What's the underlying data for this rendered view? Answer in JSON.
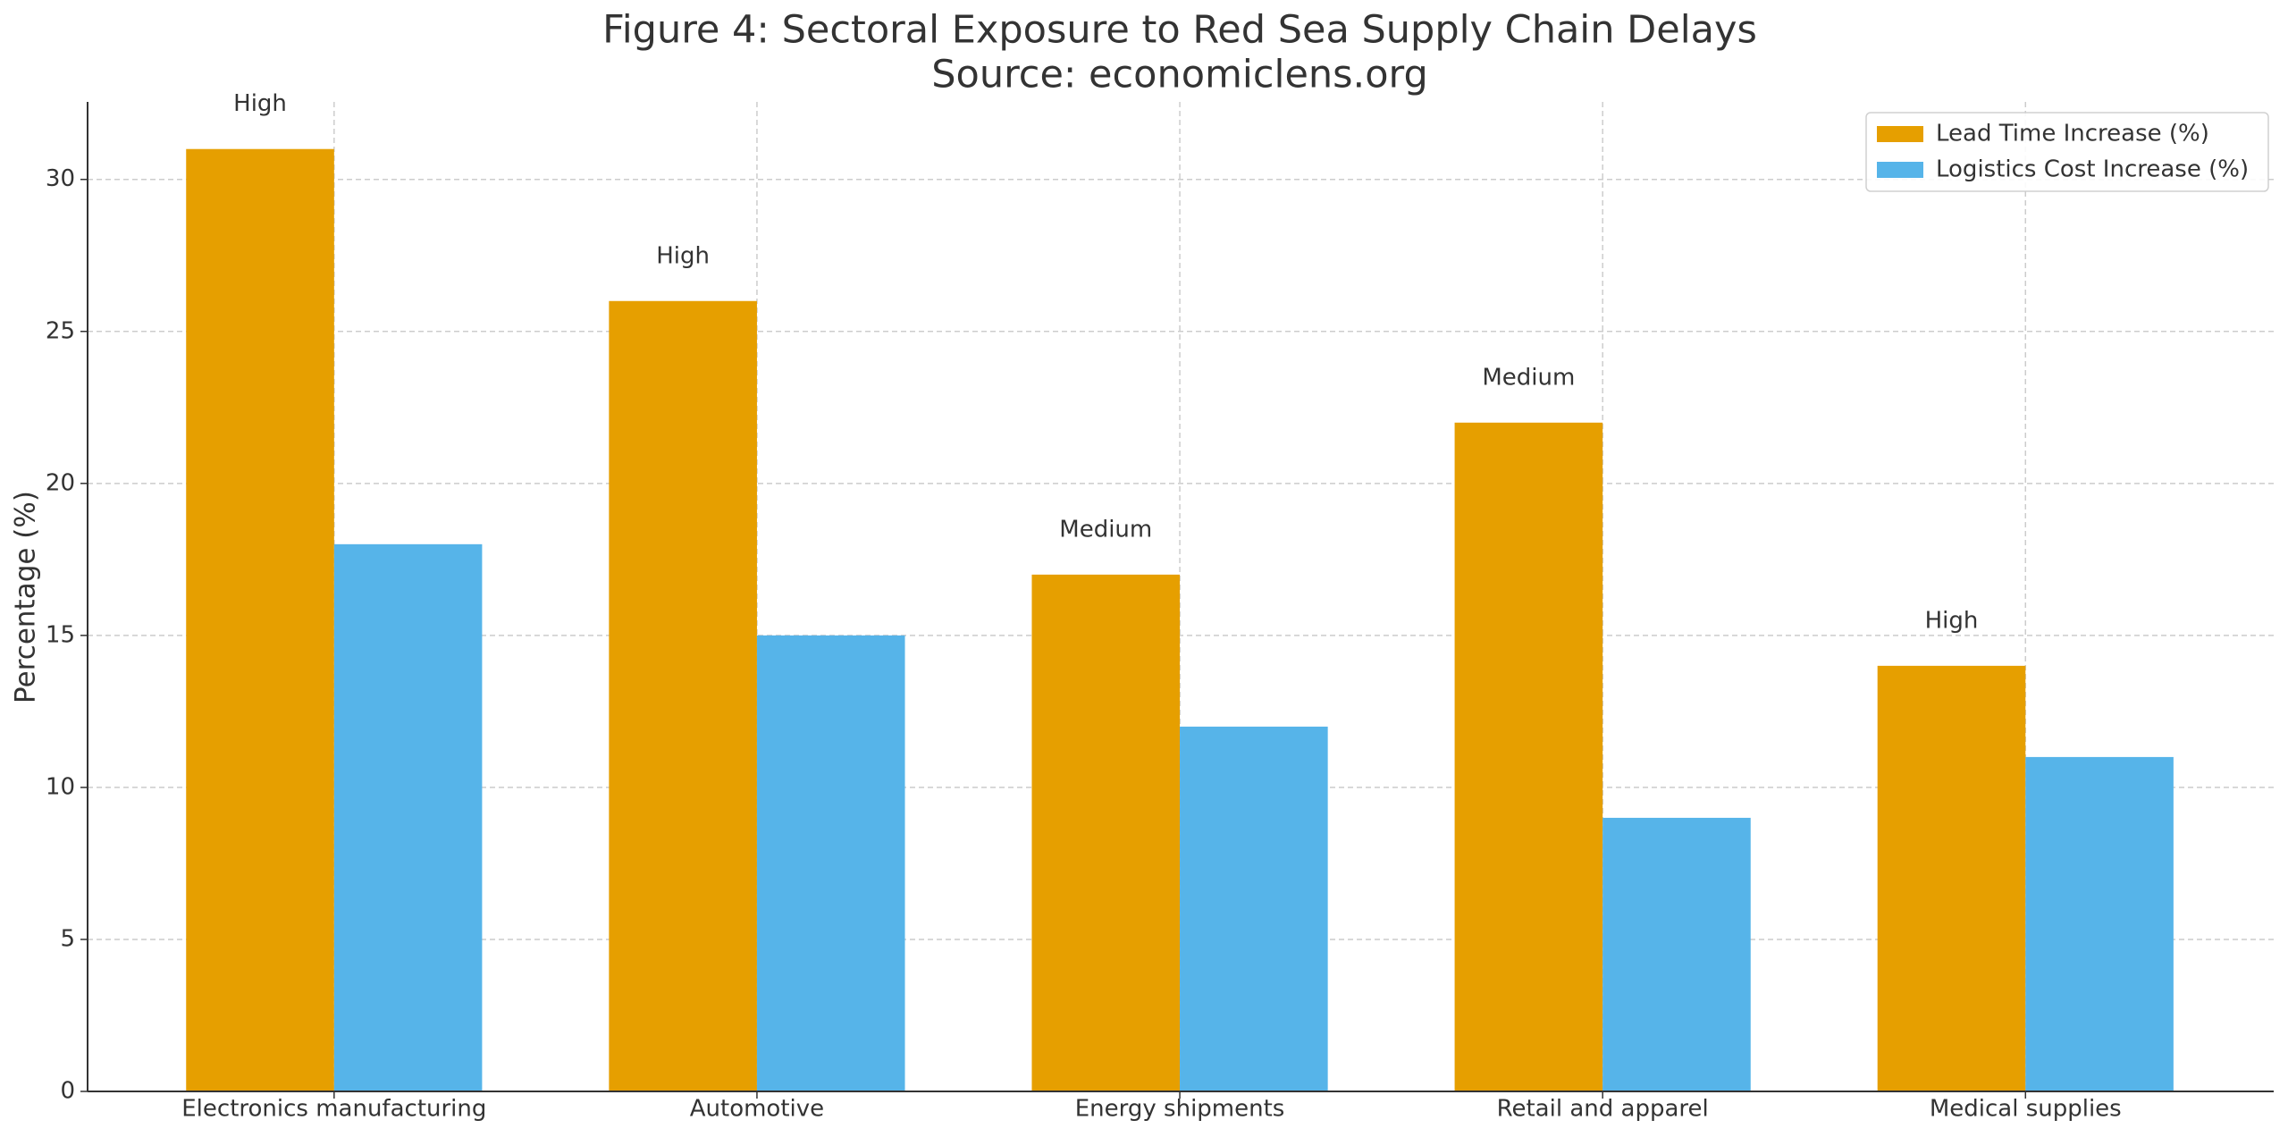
{
  "chart_data": {
    "type": "bar",
    "title": "Figure 4: Sectoral Exposure to Red Sea Supply Chain Delays",
    "subtitle": "Source: economiclens.org",
    "ylabel": "Percentage (%)",
    "categories": [
      "Electronics manufacturing",
      "Automotive",
      "Energy shipments",
      "Retail and apparel",
      "Medical supplies"
    ],
    "series": [
      {
        "name": "Lead Time Increase (%)",
        "color": "#E69F00",
        "values": [
          31,
          26,
          17,
          22,
          14
        ]
      },
      {
        "name": "Logistics Cost Increase (%)",
        "color": "#56B4E9",
        "values": [
          18,
          15,
          12,
          9,
          11
        ]
      }
    ],
    "annotations": [
      "High",
      "High",
      "Medium",
      "Medium",
      "High"
    ],
    "ylim": [
      0,
      32.55
    ],
    "yticks": [
      0,
      5,
      10,
      15,
      20,
      25,
      30
    ],
    "grid": true,
    "legend": "upper right"
  }
}
